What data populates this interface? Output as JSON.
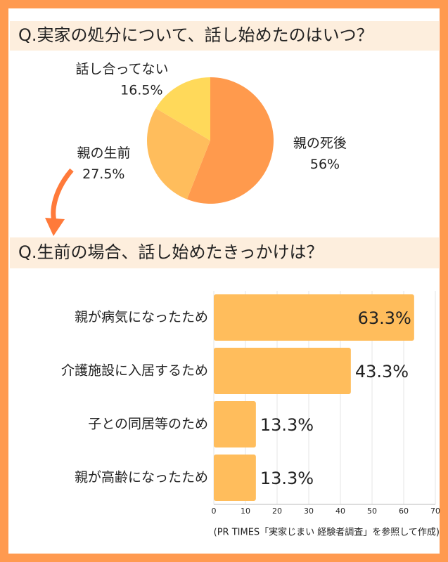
{
  "chart_data": [
    {
      "type": "pie",
      "title": "Q.実家の処分について、話し始めたのはいつ？",
      "categories": [
        "親の死後",
        "親の生前",
        "話し合ってない"
      ],
      "values": [
        56,
        27.5,
        16.5
      ],
      "value_labels": [
        "56%",
        "27.5%",
        "16.5%"
      ],
      "colors": [
        "#ff9a4d",
        "#ffbd5c",
        "#ffd95a"
      ]
    },
    {
      "type": "hbar",
      "title": "Q.生前の場合、話し始めたきっかけは？",
      "categories": [
        "親が病気になったため",
        "介護施設に入居するため",
        "子との同居等のため",
        "親が高齢になったため"
      ],
      "values": [
        63.3,
        43.3,
        13.3,
        13.3
      ],
      "value_labels": [
        "63.3%",
        "43.3%",
        "13.3%",
        "13.3%"
      ],
      "color": "#ffbd5c",
      "xlim": [
        0,
        70
      ],
      "xticks": [
        0,
        10,
        20,
        30,
        40,
        50,
        60,
        70
      ],
      "grid": true,
      "source": "(PR TIMES「実家じまい 経験者調査」を参照して作成)"
    }
  ]
}
